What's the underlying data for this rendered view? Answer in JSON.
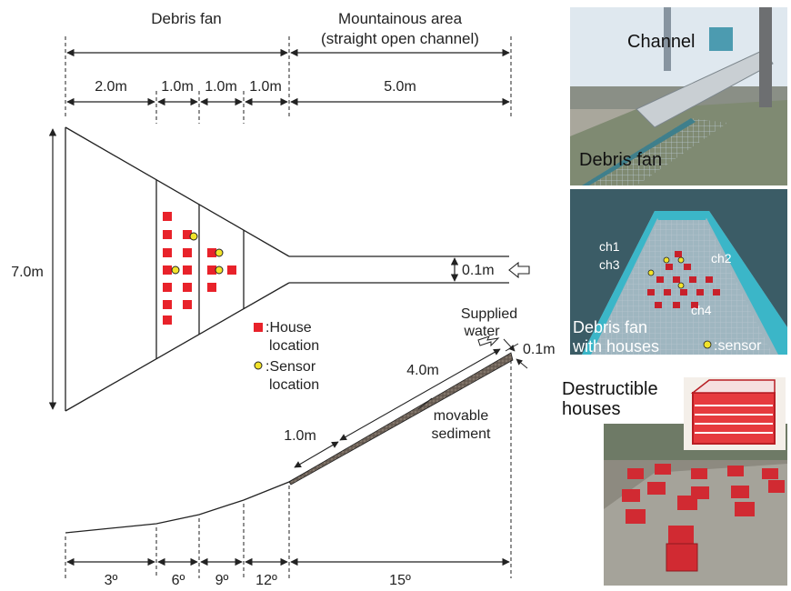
{
  "header": {
    "debris_fan": "Debris fan",
    "mountainous_line1": "Mountainous area",
    "mountainous_line2": "(straight open channel)"
  },
  "plan_dims": {
    "seg1": "2.0m",
    "seg2": "1.0m",
    "seg3": "1.0m",
    "seg4": "1.0m",
    "seg5": "5.0m",
    "width": "7.0m",
    "channel_width": "0.1m"
  },
  "legend": {
    "house_line1": ":House",
    "house_line2": "location",
    "sensor_line1": ":Sensor",
    "sensor_line2": "location"
  },
  "profile": {
    "supplied_line1": "Supplied",
    "supplied_line2": "water",
    "depth": "0.1m",
    "length_upper": "4.0m",
    "length_lower": "1.0m",
    "sediment_line1": "movable",
    "sediment_line2": "sediment",
    "slope1": "3º",
    "slope2": "6º",
    "slope3": "9º",
    "slope4": "12º",
    "slope5": "15º"
  },
  "photos": {
    "top_channel": "Channel",
    "top_fan": "Debris fan",
    "mid_ch1": "ch1",
    "mid_ch2": "ch2",
    "mid_ch3": "ch3",
    "mid_ch4": "ch4",
    "mid_caption1": "Debris fan",
    "mid_caption2": "with houses",
    "mid_sensor": ":sensor",
    "bottom_line1": "Destructible",
    "bottom_line2": "houses"
  },
  "colors": {
    "house": "#e8222a",
    "sensor": "#f2e32a",
    "sediment": "#6e6258"
  }
}
